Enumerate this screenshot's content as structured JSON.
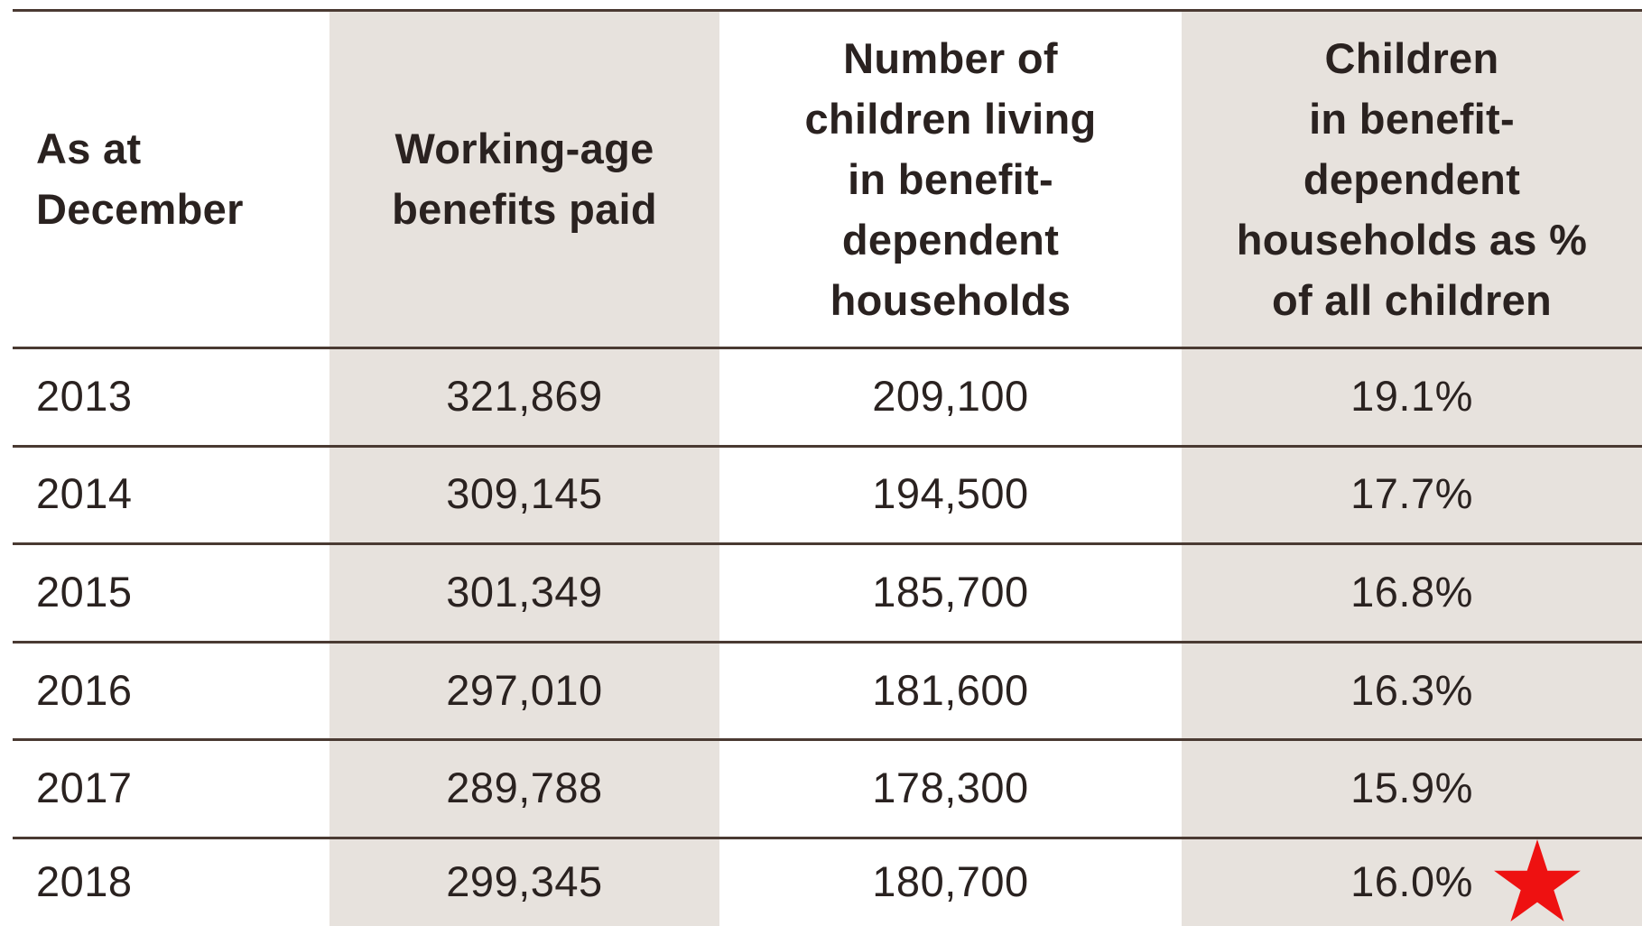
{
  "table": {
    "header": [
      [
        "As at",
        "December"
      ],
      [
        "Working-age",
        "benefits paid"
      ],
      [
        "Number of",
        "children living",
        "in benefit-",
        "dependent",
        "households"
      ],
      [
        "Children",
        "in benefit-",
        "dependent",
        "households as %",
        "of all children"
      ]
    ],
    "rows": [
      [
        "2013",
        "321,869",
        "209,100",
        "19.1%"
      ],
      [
        "2014",
        "309,145",
        "194,500",
        "17.7%"
      ],
      [
        "2015",
        "301,349",
        "185,700",
        "16.8%"
      ],
      [
        "2016",
        "297,010",
        "181,600",
        "16.3%"
      ],
      [
        "2017",
        "289,788",
        "178,300",
        "15.9%"
      ],
      [
        "2018",
        "299,345",
        "180,700",
        "16.0%"
      ]
    ]
  }
}
